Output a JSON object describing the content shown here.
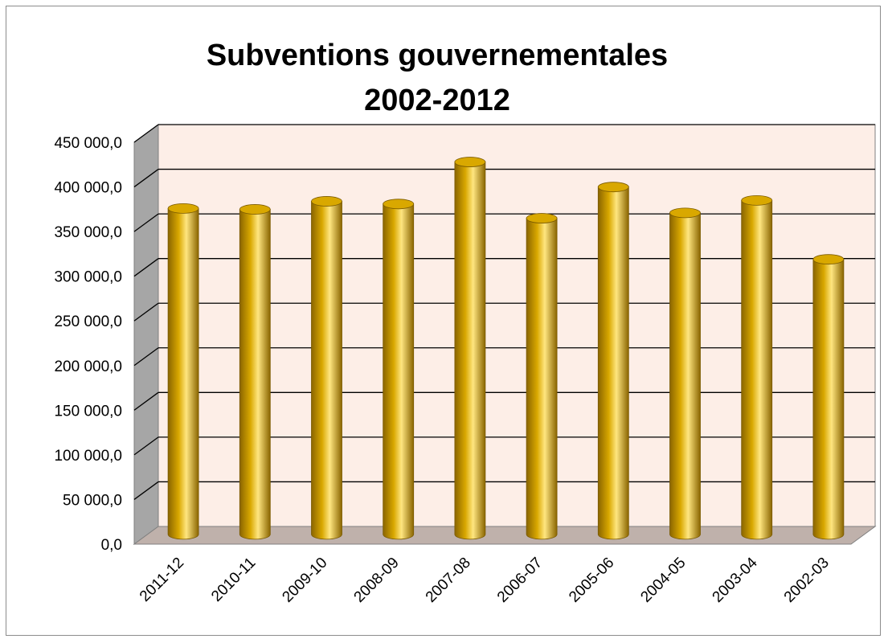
{
  "chart_data": {
    "type": "bar",
    "title_lines": [
      "Subventions gouvernementales",
      "2002-2012"
    ],
    "categories": [
      "2011-12",
      "2010-11",
      "2009-10",
      "2008-09",
      "2007-08",
      "2006-07",
      "2005-06",
      "2004-05",
      "2003-04",
      "2002-03"
    ],
    "series": [
      {
        "values": [
          365000,
          364000,
          373000,
          370000,
          417000,
          354000,
          389000,
          360000,
          374000,
          308000
        ]
      }
    ],
    "ylim": [
      0,
      450000
    ],
    "y_step": 50000,
    "y_tick_labels": [
      "0,0",
      "50 000,0",
      "100 000,0",
      "150 000,0",
      "200 000,0",
      "250 000,0",
      "300 000,0",
      "350 000,0",
      "400 000,0",
      "450 000,0"
    ],
    "grid": true,
    "legend": "none",
    "style": "3d-cylinder",
    "colors": {
      "bar": "#d9a800",
      "bar_dark": "#8a6500",
      "bar_light": "#ffe680",
      "wall": "#fdeee7",
      "floor": "#bfb1ab",
      "side_wall": "#a6a6a6",
      "gridline": "#000000"
    }
  }
}
